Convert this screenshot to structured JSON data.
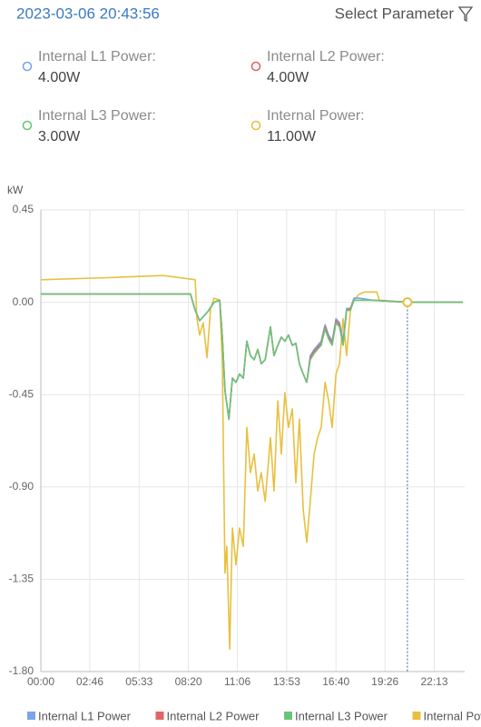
{
  "header": {
    "timestamp": "2023-03-06 20:43:56",
    "select_label": "Select Parameter"
  },
  "readouts": [
    {
      "label": "Internal L1 Power:",
      "value": "4.00W",
      "color": "#7aa6e8"
    },
    {
      "label": "Internal L2 Power:",
      "value": "4.00W",
      "color": "#e06666"
    },
    {
      "label": "Internal L3 Power:",
      "value": "3.00W",
      "color": "#6cc47a"
    },
    {
      "label": "Internal Power:",
      "value": "11.00W",
      "color": "#e8c040"
    }
  ],
  "chart_data": {
    "type": "line",
    "y_unit": "kW",
    "xlim": [
      0,
      1436
    ],
    "xticks": [
      {
        "value": 0,
        "label": "00:00"
      },
      {
        "value": 166,
        "label": "02:46"
      },
      {
        "value": 333,
        "label": "05:33"
      },
      {
        "value": 500,
        "label": "08:20"
      },
      {
        "value": 666,
        "label": "11:06"
      },
      {
        "value": 833,
        "label": "13:53"
      },
      {
        "value": 1000,
        "label": "16:40"
      },
      {
        "value": 1166,
        "label": "19:26"
      },
      {
        "value": 1333,
        "label": "22:13"
      }
    ],
    "ylim": [
      -1.8,
      0.45
    ],
    "yticks": [
      {
        "value": 0.45,
        "label": "0.45"
      },
      {
        "value": 0,
        "label": "0.00"
      },
      {
        "value": -0.45,
        "label": "-0.45"
      },
      {
        "value": -0.9,
        "label": "-0.90"
      },
      {
        "value": -1.35,
        "label": "-1.35"
      },
      {
        "value": -1.8,
        "label": "-1.80"
      }
    ],
    "grid": true,
    "cursor_x": 1242,
    "series": [
      {
        "name": "Internal L1 Power",
        "color": "#7aa6e8",
        "x": [
          0,
          231,
          507,
          523,
          538,
          557,
          569,
          587,
          606,
          615,
          624,
          637,
          649,
          661,
          673,
          686,
          698,
          710,
          723,
          735,
          747,
          760,
          778,
          790,
          803,
          815,
          827,
          839,
          852,
          864,
          876,
          889,
          901,
          913,
          926,
          938,
          950,
          963,
          975,
          987,
          1000,
          1012,
          1024,
          1036,
          1049,
          1061,
          1079,
          1122,
          1242,
          1430
        ],
        "values": [
          0.04,
          0.04,
          0.04,
          -0.04,
          -0.09,
          -0.06,
          -0.04,
          0.0,
          0.01,
          -0.17,
          -0.43,
          -0.57,
          -0.37,
          -0.39,
          -0.35,
          -0.37,
          -0.19,
          -0.26,
          -0.28,
          -0.23,
          -0.3,
          -0.28,
          -0.12,
          -0.26,
          -0.21,
          -0.17,
          -0.19,
          -0.16,
          -0.21,
          -0.2,
          -0.3,
          -0.35,
          -0.39,
          -0.26,
          -0.23,
          -0.21,
          -0.19,
          -0.11,
          -0.16,
          -0.19,
          -0.08,
          -0.1,
          -0.19,
          -0.03,
          -0.03,
          0.02,
          0.02,
          0.01,
          0.0,
          0.0
        ]
      },
      {
        "name": "Internal L2 Power",
        "color": "#e06666",
        "x": [
          0,
          231,
          507,
          523,
          538,
          557,
          569,
          587,
          606,
          615,
          624,
          637,
          649,
          661,
          673,
          686,
          698,
          710,
          723,
          735,
          747,
          760,
          778,
          790,
          803,
          815,
          827,
          839,
          852,
          864,
          876,
          889,
          901,
          913,
          926,
          938,
          950,
          963,
          975,
          987,
          1000,
          1012,
          1024,
          1036,
          1049,
          1061,
          1079,
          1122,
          1242,
          1430
        ],
        "values": [
          0.04,
          0.04,
          0.04,
          -0.04,
          -0.09,
          -0.06,
          -0.04,
          0.0,
          0.01,
          -0.17,
          -0.43,
          -0.57,
          -0.37,
          -0.39,
          -0.35,
          -0.37,
          -0.19,
          -0.26,
          -0.28,
          -0.23,
          -0.3,
          -0.28,
          -0.12,
          -0.26,
          -0.21,
          -0.17,
          -0.19,
          -0.16,
          -0.21,
          -0.2,
          -0.3,
          -0.35,
          -0.39,
          -0.27,
          -0.24,
          -0.22,
          -0.2,
          -0.12,
          -0.17,
          -0.2,
          -0.09,
          -0.11,
          -0.2,
          -0.04,
          -0.03,
          0.01,
          0.01,
          0.01,
          0.0,
          0.0
        ]
      },
      {
        "name": "Internal L3 Power",
        "color": "#6cc47a",
        "x": [
          0,
          231,
          507,
          523,
          538,
          557,
          569,
          587,
          606,
          615,
          624,
          637,
          649,
          661,
          673,
          686,
          698,
          710,
          723,
          735,
          747,
          760,
          778,
          790,
          803,
          815,
          827,
          839,
          852,
          864,
          876,
          889,
          901,
          913,
          926,
          938,
          950,
          963,
          975,
          987,
          1000,
          1012,
          1024,
          1036,
          1049,
          1061,
          1079,
          1122,
          1242,
          1430
        ],
        "values": [
          0.04,
          0.04,
          0.04,
          -0.04,
          -0.09,
          -0.06,
          -0.04,
          0.0,
          0.01,
          -0.17,
          -0.43,
          -0.57,
          -0.37,
          -0.39,
          -0.35,
          -0.37,
          -0.19,
          -0.26,
          -0.28,
          -0.23,
          -0.3,
          -0.28,
          -0.12,
          -0.26,
          -0.21,
          -0.17,
          -0.19,
          -0.16,
          -0.21,
          -0.2,
          -0.3,
          -0.35,
          -0.39,
          -0.28,
          -0.25,
          -0.23,
          -0.21,
          -0.13,
          -0.18,
          -0.21,
          -0.1,
          -0.12,
          -0.21,
          -0.04,
          -0.04,
          0.01,
          0.01,
          0.01,
          0.0,
          0.0
        ]
      },
      {
        "name": "Internal Power",
        "color": "#e8c040",
        "x": [
          0,
          231,
          415,
          523,
          529,
          538,
          550,
          563,
          575,
          587,
          606,
          615,
          624,
          630,
          640,
          649,
          661,
          673,
          686,
          698,
          710,
          723,
          735,
          747,
          760,
          778,
          790,
          803,
          815,
          827,
          839,
          852,
          864,
          876,
          889,
          901,
          913,
          926,
          938,
          950,
          963,
          975,
          987,
          1000,
          1012,
          1024,
          1036,
          1049,
          1061,
          1079,
          1098,
          1122,
          1138,
          1147,
          1242,
          1430
        ],
        "values": [
          0.11,
          0.12,
          0.13,
          0.11,
          -0.08,
          -0.16,
          -0.1,
          -0.27,
          -0.03,
          0.02,
          0.01,
          -0.3,
          -1.32,
          -1.19,
          -1.69,
          -1.1,
          -1.28,
          -1.1,
          -1.19,
          -0.61,
          -0.83,
          -0.74,
          -0.92,
          -0.83,
          -0.97,
          -0.66,
          -0.92,
          -0.48,
          -0.74,
          -0.44,
          -0.61,
          -0.52,
          -0.88,
          -0.57,
          -1.01,
          -1.17,
          -0.97,
          -0.74,
          -0.66,
          -0.61,
          -0.39,
          -0.48,
          -0.61,
          -0.35,
          -0.3,
          -0.08,
          -0.26,
          -0.04,
          0.01,
          0.04,
          0.05,
          0.05,
          0.05,
          0.01,
          0.0,
          0.0
        ]
      }
    ]
  }
}
